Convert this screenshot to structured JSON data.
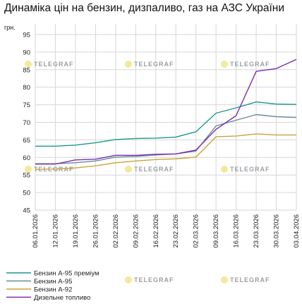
{
  "title": "Динаміка цін на бензин, дизпаливо, газ на АЗС України",
  "watermark": "TELEGRAF",
  "chart_data": {
    "type": "line",
    "title": "Динаміка цін на бензин, дизпаливо, газ на АЗС України",
    "unit_label": "грн.",
    "ylim": [
      45,
      98
    ],
    "yticks": [
      45,
      50,
      55,
      60,
      65,
      70,
      75,
      80,
      85,
      90,
      95
    ],
    "grid": true,
    "legend_position": "bottom-left",
    "x": [
      "06.01.2026",
      "12.01.2026",
      "19.01.2026",
      "26.01.2026",
      "02.02.2026",
      "09.02.2026",
      "16.02.2026",
      "23.02.2026",
      "02.03.2026",
      "09.03.2026",
      "16.03.2026",
      "23.03.2026",
      "30.03.2026",
      "03.04.2026"
    ],
    "series": [
      {
        "name": "Бензин А-95 преміум",
        "color": "#1a9a8a",
        "values": [
          63.2,
          63.2,
          63.5,
          64.2,
          65.1,
          65.4,
          65.5,
          65.8,
          67.3,
          72.6,
          74.1,
          75.8,
          75.2,
          75.1
        ]
      },
      {
        "name": "Бензин А-95",
        "color": "#6b8a9c",
        "values": [
          58.2,
          58.2,
          58.5,
          59.0,
          60.1,
          60.3,
          60.7,
          61.0,
          61.8,
          69.0,
          70.6,
          72.2,
          71.6,
          71.4
        ]
      },
      {
        "name": "Бензин А-92",
        "color": "#c9a437",
        "values": [
          56.6,
          56.7,
          57.0,
          57.6,
          58.5,
          59.0,
          59.4,
          59.6,
          60.1,
          65.9,
          66.1,
          66.7,
          66.4,
          66.4
        ]
      },
      {
        "name": "Дизельне топливо",
        "color": "#7b2fb0",
        "values": [
          58.1,
          58.1,
          59.3,
          59.5,
          60.6,
          60.6,
          60.9,
          61.0,
          62.1,
          68.0,
          71.9,
          84.5,
          85.3,
          87.9
        ]
      }
    ]
  }
}
